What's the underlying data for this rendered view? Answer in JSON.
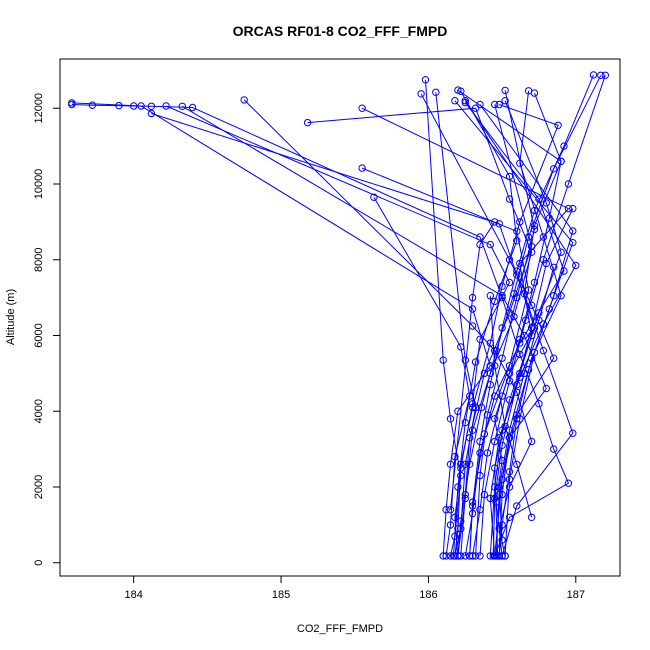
{
  "chart_data": {
    "type": "line",
    "title": "ORCAS RF01-8 CO2_FFF_FMPD",
    "xlabel": "CO2_FFF_FMPD",
    "ylabel": "Altitude (m)",
    "xlim": [
      183.5,
      187.3
    ],
    "ylim": [
      -350,
      13300
    ],
    "xticks": [
      184,
      185,
      186,
      187
    ],
    "yticks": [
      0,
      2000,
      4000,
      6000,
      8000,
      10000,
      12000
    ],
    "grid": false,
    "line_color": "#0000ff",
    "marker": "open-circle",
    "series": [
      {
        "points": [
          [
            183.58,
            12100
          ],
          [
            183.72,
            12080
          ],
          [
            183.9,
            12070
          ],
          [
            184.0,
            12060
          ],
          [
            184.12,
            12050
          ],
          [
            184.4,
            12020
          ],
          [
            186.35,
            8600
          ],
          [
            186.5,
            7000
          ],
          [
            186.62,
            5500
          ],
          [
            186.75,
            4200
          ],
          [
            186.85,
            3000
          ],
          [
            186.95,
            2100
          ],
          [
            186.55,
            1200
          ],
          [
            186.45,
            180
          ]
        ]
      },
      {
        "points": [
          [
            183.58,
            12140
          ],
          [
            184.05,
            12060
          ],
          [
            186.3,
            6700
          ],
          [
            186.42,
            5200
          ],
          [
            186.2,
            4000
          ],
          [
            186.15,
            2600
          ],
          [
            186.12,
            1400
          ],
          [
            186.1,
            180
          ]
        ]
      },
      {
        "points": [
          [
            184.12,
            11860
          ],
          [
            186.48,
            8950
          ],
          [
            186.6,
            7600
          ],
          [
            186.72,
            6200
          ],
          [
            186.55,
            5000
          ],
          [
            186.45,
            3800
          ],
          [
            186.5,
            2700
          ],
          [
            186.46,
            1600
          ],
          [
            186.5,
            180
          ]
        ]
      },
      {
        "points": [
          [
            184.33,
            12050
          ],
          [
            186.5,
            7050
          ],
          [
            186.65,
            6000
          ],
          [
            186.8,
            4600
          ],
          [
            186.55,
            3300
          ],
          [
            186.48,
            1800
          ],
          [
            186.46,
            180
          ]
        ]
      },
      {
        "points": [
          [
            184.22,
            12060
          ],
          [
            186.42,
            8400
          ],
          [
            186.55,
            7400
          ],
          [
            186.35,
            5900
          ],
          [
            186.3,
            4200
          ],
          [
            186.22,
            2500
          ],
          [
            186.18,
            1200
          ],
          [
            186.2,
            180
          ]
        ]
      },
      {
        "points": [
          [
            184.75,
            12220
          ],
          [
            186.3,
            6250
          ],
          [
            186.45,
            5600
          ],
          [
            186.6,
            4500
          ],
          [
            186.7,
            3200
          ],
          [
            186.55,
            2000
          ],
          [
            186.48,
            900
          ],
          [
            186.52,
            180
          ]
        ]
      },
      {
        "points": [
          [
            185.18,
            11620
          ],
          [
            186.32,
            12000
          ],
          [
            186.55,
            9600
          ],
          [
            186.7,
            8200
          ],
          [
            186.58,
            6500
          ],
          [
            186.42,
            5000
          ],
          [
            186.3,
            3500
          ],
          [
            186.25,
            1700
          ],
          [
            186.2,
            180
          ]
        ]
      },
      {
        "points": [
          [
            185.55,
            12000
          ],
          [
            186.95,
            9350
          ],
          [
            186.62,
            7900
          ],
          [
            186.7,
            6000
          ],
          [
            186.55,
            4300
          ],
          [
            186.45,
            2500
          ],
          [
            186.47,
            180
          ]
        ]
      },
      {
        "points": [
          [
            185.55,
            10420
          ],
          [
            186.6,
            8750
          ],
          [
            186.68,
            7200
          ],
          [
            186.55,
            5200
          ],
          [
            186.38,
            3400
          ],
          [
            186.3,
            1600
          ],
          [
            186.28,
            180
          ]
        ]
      },
      {
        "points": [
          [
            185.63,
            9650
          ],
          [
            186.22,
            5700
          ],
          [
            186.28,
            4400
          ],
          [
            186.18,
            2800
          ],
          [
            186.15,
            1000
          ],
          [
            186.12,
            180
          ]
        ]
      },
      {
        "points": [
          [
            185.98,
            12750
          ],
          [
            186.1,
            5350
          ],
          [
            186.15,
            3800
          ],
          [
            186.22,
            2300
          ],
          [
            186.18,
            700
          ],
          [
            186.15,
            180
          ]
        ]
      },
      {
        "points": [
          [
            185.95,
            12380
          ],
          [
            186.55,
            8000
          ],
          [
            186.7,
            6800
          ],
          [
            186.85,
            5400
          ],
          [
            186.6,
            3900
          ],
          [
            186.5,
            2200
          ],
          [
            186.45,
            180
          ]
        ]
      },
      {
        "points": [
          [
            186.05,
            12420
          ],
          [
            186.25,
            5350
          ],
          [
            186.32,
            4100
          ],
          [
            186.25,
            2600
          ],
          [
            186.22,
            900
          ],
          [
            186.18,
            180
          ]
        ]
      },
      {
        "points": [
          [
            186.2,
            12480
          ],
          [
            186.9,
            10600
          ],
          [
            186.72,
            8900
          ],
          [
            186.65,
            7100
          ],
          [
            186.78,
            5600
          ],
          [
            186.98,
            3420
          ],
          [
            186.6,
            1500
          ],
          [
            186.5,
            180
          ]
        ]
      },
      {
        "points": [
          [
            186.18,
            12200
          ],
          [
            186.98,
            8450
          ],
          [
            186.82,
            6700
          ],
          [
            186.68,
            5100
          ],
          [
            186.55,
            3300
          ],
          [
            186.5,
            1800
          ],
          [
            186.48,
            180
          ]
        ]
      },
      {
        "points": [
          [
            186.22,
            12450
          ],
          [
            186.55,
            10200
          ],
          [
            186.6,
            8500
          ],
          [
            186.45,
            6900
          ],
          [
            186.32,
            5300
          ],
          [
            186.25,
            3700
          ],
          [
            186.2,
            2000
          ],
          [
            186.17,
            180
          ]
        ]
      },
      {
        "points": [
          [
            186.25,
            12200
          ],
          [
            187.0,
            7850
          ],
          [
            186.78,
            6300
          ],
          [
            186.62,
            4900
          ],
          [
            186.48,
            3300
          ],
          [
            186.42,
            1700
          ],
          [
            186.45,
            180
          ]
        ]
      },
      {
        "points": [
          [
            186.25,
            12150
          ],
          [
            186.75,
            9600
          ],
          [
            186.92,
            7700
          ],
          [
            186.62,
            5800
          ],
          [
            186.45,
            4400
          ],
          [
            186.35,
            2900
          ],
          [
            186.3,
            1300
          ],
          [
            186.25,
            180
          ]
        ]
      },
      {
        "points": [
          [
            186.35,
            12100
          ],
          [
            186.98,
            8760
          ],
          [
            186.85,
            7050
          ],
          [
            186.72,
            5550
          ],
          [
            186.62,
            3800
          ],
          [
            186.55,
            2200
          ],
          [
            186.52,
            180
          ]
        ]
      },
      {
        "points": [
          [
            186.45,
            12100
          ],
          [
            186.7,
            8350
          ],
          [
            186.55,
            6600
          ],
          [
            186.38,
            5000
          ],
          [
            186.28,
            3300
          ],
          [
            186.25,
            1800
          ],
          [
            186.22,
            180
          ]
        ]
      },
      {
        "points": [
          [
            186.48,
            12100
          ],
          [
            186.88,
            11550
          ],
          [
            186.62,
            9000
          ],
          [
            186.5,
            7300
          ],
          [
            186.42,
            5800
          ],
          [
            186.3,
            4100
          ],
          [
            186.22,
            2600
          ],
          [
            186.2,
            900
          ],
          [
            186.18,
            180
          ]
        ]
      },
      {
        "points": [
          [
            186.52,
            12200
          ],
          [
            186.8,
            9500
          ],
          [
            186.9,
            8200
          ],
          [
            186.75,
            6600
          ],
          [
            186.62,
            5000
          ],
          [
            186.5,
            3500
          ],
          [
            186.45,
            2000
          ],
          [
            186.42,
            180
          ]
        ]
      },
      {
        "points": [
          [
            186.52,
            12470
          ],
          [
            186.72,
            8800
          ],
          [
            186.6,
            7000
          ],
          [
            186.5,
            5400
          ],
          [
            186.4,
            3900
          ],
          [
            186.35,
            2300
          ],
          [
            186.32,
            180
          ]
        ]
      },
      {
        "points": [
          [
            186.68,
            12460
          ],
          [
            186.62,
            10550
          ],
          [
            186.78,
            8600
          ],
          [
            186.9,
            7050
          ],
          [
            186.7,
            5400
          ],
          [
            186.6,
            3800
          ],
          [
            186.55,
            2400
          ],
          [
            186.5,
            1000
          ],
          [
            186.48,
            180
          ]
        ]
      },
      {
        "points": [
          [
            186.72,
            12400
          ],
          [
            186.9,
            10600
          ],
          [
            186.82,
            9100
          ],
          [
            186.72,
            7400
          ],
          [
            186.62,
            5900
          ],
          [
            186.5,
            4400
          ],
          [
            186.4,
            2900
          ],
          [
            186.35,
            1400
          ],
          [
            186.3,
            180
          ]
        ]
      },
      {
        "points": [
          [
            187.12,
            12880
          ],
          [
            186.92,
            11000
          ],
          [
            186.72,
            9300
          ],
          [
            186.6,
            7700
          ],
          [
            186.5,
            6200
          ],
          [
            186.42,
            4700
          ],
          [
            186.35,
            3200
          ],
          [
            186.3,
            1500
          ],
          [
            186.28,
            180
          ]
        ]
      },
      {
        "points": [
          [
            187.17,
            12870
          ],
          [
            186.85,
            10400
          ],
          [
            186.68,
            8600
          ],
          [
            186.58,
            7100
          ],
          [
            186.46,
            5600
          ],
          [
            186.36,
            4100
          ],
          [
            186.28,
            2600
          ],
          [
            186.22,
            1100
          ],
          [
            186.2,
            180
          ]
        ]
      },
      {
        "points": [
          [
            187.2,
            12870
          ],
          [
            186.95,
            10000
          ],
          [
            186.78,
            8000
          ],
          [
            186.66,
            6400
          ],
          [
            186.55,
            4800
          ],
          [
            186.45,
            3200
          ],
          [
            186.38,
            1800
          ],
          [
            186.35,
            180
          ]
        ]
      },
      {
        "points": [
          [
            186.98,
            9350
          ],
          [
            186.8,
            7900
          ],
          [
            186.7,
            6200
          ],
          [
            186.6,
            4700
          ],
          [
            186.5,
            3100
          ],
          [
            186.45,
            1700
          ],
          [
            186.44,
            180
          ]
        ]
      },
      {
        "points": [
          [
            186.85,
            7800
          ],
          [
            186.75,
            6400
          ],
          [
            186.65,
            5000
          ],
          [
            186.55,
            3500
          ],
          [
            186.48,
            2000
          ],
          [
            186.5,
            600
          ]
        ]
      },
      {
        "points": [
          [
            186.15,
            1400
          ],
          [
            186.3,
            7000
          ],
          [
            186.35,
            8400
          ],
          [
            186.45,
            9000
          ]
        ]
      },
      {
        "points": [
          [
            186.42,
            7050
          ],
          [
            186.45,
            5200
          ],
          [
            186.52,
            3600
          ],
          [
            186.6,
            2600
          ],
          [
            186.7,
            1200
          ]
        ]
      }
    ]
  }
}
